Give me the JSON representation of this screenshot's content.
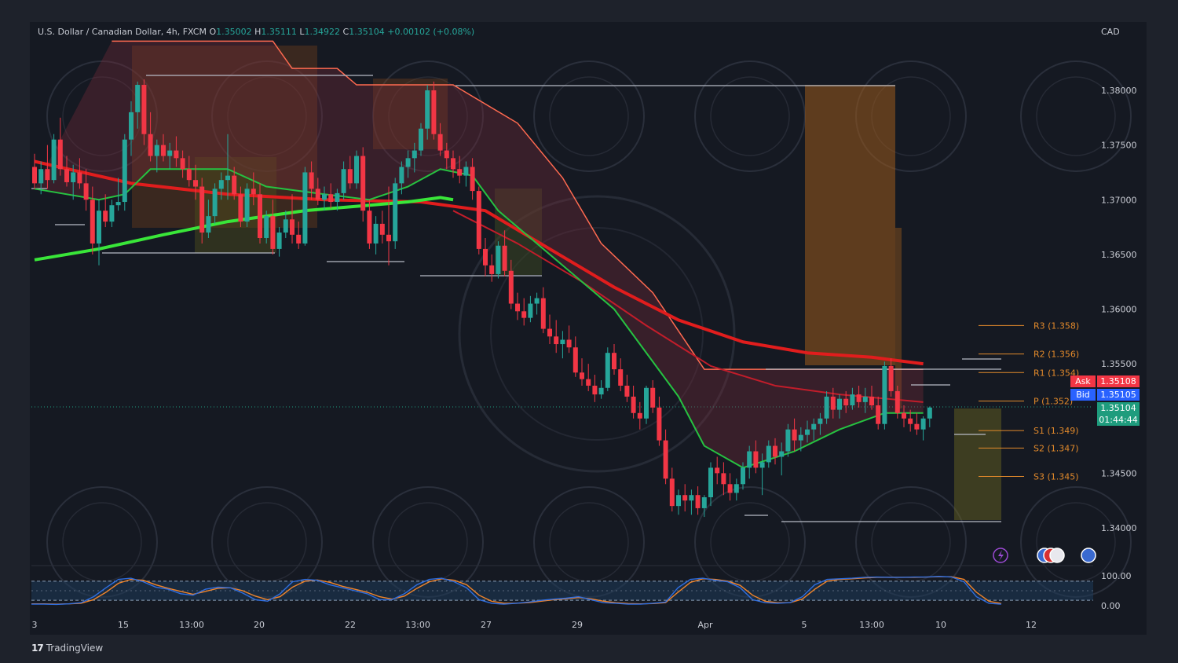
{
  "header": {
    "symbol": "U.S. Dollar / Canadian Dollar, 4h, FXCM",
    "o_label": "O",
    "o": "1.35002",
    "h_label": "H",
    "h": "1.35111",
    "l_label": "L",
    "l": "1.34922",
    "c_label": "C",
    "c": "1.35104",
    "change": "+0.00102 (+0.08%)"
  },
  "currency": "CAD",
  "brand": "TradingView",
  "quote": {
    "ask_label": "Ask",
    "ask": "1.35108",
    "bid_label": "Bid",
    "bid": "1.35105",
    "last": "1.35104",
    "countdown": "01:44:44"
  },
  "colors": {
    "up": "#26a69a",
    "down": "#f23645",
    "ema_green": "#39e639",
    "ema_red": "#e11d1d",
    "pivot": "#e38a2b",
    "box": "#b5621d"
  },
  "chart_data": {
    "type": "line",
    "title": "",
    "price_axis": {
      "ticks": [
        "1.38000",
        "1.37500",
        "1.37000",
        "1.36500",
        "1.36000",
        "1.35500",
        "1.35000",
        "1.34500",
        "1.34000"
      ],
      "ylim": [
        1.3365,
        1.3855
      ]
    },
    "time_axis": {
      "ticks": [
        "3",
        "15",
        "13:00",
        "20",
        "22",
        "13:00",
        "27",
        "29",
        "Apr",
        "5",
        "13:00",
        "10",
        "12"
      ]
    },
    "oscillator_axis": {
      "ticks": [
        "100.00",
        "0.00"
      ],
      "ylim": [
        0,
        100
      ]
    },
    "pivots": [
      {
        "label": "R3 (1.358)",
        "value": 1.3585
      },
      {
        "label": "R2 (1.356)",
        "value": 1.3559
      },
      {
        "label": "R1 (1.354)",
        "value": 1.3542
      },
      {
        "label": "P (1.352)",
        "value": 1.3516
      },
      {
        "label": "S1 (1.349)",
        "value": 1.3489
      },
      {
        "label": "S2 (1.347)",
        "value": 1.3473
      },
      {
        "label": "S3 (1.345)",
        "value": 1.3447
      }
    ],
    "ohlc": [
      [
        1.373,
        1.3742,
        1.371,
        1.3715
      ],
      [
        1.3715,
        1.3735,
        1.3705,
        1.3728
      ],
      [
        1.3728,
        1.375,
        1.371,
        1.3718
      ],
      [
        1.3718,
        1.376,
        1.3715,
        1.3755
      ],
      [
        1.3755,
        1.3775,
        1.3722,
        1.3728
      ],
      [
        1.3728,
        1.374,
        1.3712,
        1.3716
      ],
      [
        1.3716,
        1.3732,
        1.37,
        1.3725
      ],
      [
        1.3725,
        1.3738,
        1.371,
        1.3715
      ],
      [
        1.3715,
        1.3728,
        1.369,
        1.37
      ],
      [
        1.37,
        1.3712,
        1.365,
        1.366
      ],
      [
        1.366,
        1.37,
        1.364,
        1.369
      ],
      [
        1.369,
        1.3705,
        1.3675,
        1.368
      ],
      [
        1.368,
        1.37,
        1.3675,
        1.3695
      ],
      [
        1.3695,
        1.372,
        1.369,
        1.3698
      ],
      [
        1.3698,
        1.376,
        1.369,
        1.3755
      ],
      [
        1.3755,
        1.379,
        1.374,
        1.378
      ],
      [
        1.378,
        1.3808,
        1.3765,
        1.3805
      ],
      [
        1.3805,
        1.381,
        1.375,
        1.376
      ],
      [
        1.376,
        1.378,
        1.3735,
        1.374
      ],
      [
        1.374,
        1.3755,
        1.3725,
        1.375
      ],
      [
        1.375,
        1.376,
        1.3735,
        1.374
      ],
      [
        1.374,
        1.3752,
        1.3728,
        1.3745
      ],
      [
        1.3745,
        1.3758,
        1.373,
        1.3738
      ],
      [
        1.3738,
        1.3745,
        1.372,
        1.3728
      ],
      [
        1.3728,
        1.374,
        1.3712,
        1.3718
      ],
      [
        1.3718,
        1.3732,
        1.37,
        1.3712
      ],
      [
        1.3712,
        1.372,
        1.366,
        1.367
      ],
      [
        1.367,
        1.37,
        1.3665,
        1.3685
      ],
      [
        1.3685,
        1.3715,
        1.3678,
        1.371
      ],
      [
        1.371,
        1.3725,
        1.37,
        1.3718
      ],
      [
        1.3718,
        1.376,
        1.37,
        1.3722
      ],
      [
        1.3722,
        1.373,
        1.37,
        1.3705
      ],
      [
        1.3705,
        1.3712,
        1.3675,
        1.368
      ],
      [
        1.368,
        1.3715,
        1.3675,
        1.371
      ],
      [
        1.371,
        1.3725,
        1.3695,
        1.3705
      ],
      [
        1.3705,
        1.3715,
        1.366,
        1.3665
      ],
      [
        1.3665,
        1.369,
        1.366,
        1.3685
      ],
      [
        1.3685,
        1.37,
        1.365,
        1.3655
      ],
      [
        1.3655,
        1.3675,
        1.3648,
        1.367
      ],
      [
        1.367,
        1.369,
        1.3665,
        1.3682
      ],
      [
        1.3682,
        1.3705,
        1.366,
        1.3668
      ],
      [
        1.3668,
        1.368,
        1.3655,
        1.366
      ],
      [
        1.366,
        1.373,
        1.3658,
        1.3725
      ],
      [
        1.3725,
        1.3735,
        1.37,
        1.371
      ],
      [
        1.371,
        1.372,
        1.3695,
        1.37
      ],
      [
        1.37,
        1.3712,
        1.369,
        1.3705
      ],
      [
        1.3705,
        1.3715,
        1.3692,
        1.3698
      ],
      [
        1.3698,
        1.371,
        1.369,
        1.3706
      ],
      [
        1.3706,
        1.3735,
        1.37,
        1.3728
      ],
      [
        1.3728,
        1.374,
        1.371,
        1.3715
      ],
      [
        1.3715,
        1.3745,
        1.371,
        1.374
      ],
      [
        1.374,
        1.3748,
        1.368,
        1.369
      ],
      [
        1.369,
        1.37,
        1.3655,
        1.366
      ],
      [
        1.366,
        1.3685,
        1.365,
        1.3678
      ],
      [
        1.3678,
        1.369,
        1.366,
        1.3668
      ],
      [
        1.3668,
        1.3712,
        1.364,
        1.3662
      ],
      [
        1.3662,
        1.372,
        1.3655,
        1.3715
      ],
      [
        1.3715,
        1.3735,
        1.3705,
        1.373
      ],
      [
        1.373,
        1.3745,
        1.372,
        1.3738
      ],
      [
        1.3738,
        1.3752,
        1.3725,
        1.3745
      ],
      [
        1.3745,
        1.377,
        1.374,
        1.3765
      ],
      [
        1.3765,
        1.3805,
        1.3755,
        1.38
      ],
      [
        1.38,
        1.3808,
        1.3755,
        1.376
      ],
      [
        1.376,
        1.377,
        1.374,
        1.3745
      ],
      [
        1.3745,
        1.3752,
        1.3728,
        1.3738
      ],
      [
        1.3738,
        1.3745,
        1.372,
        1.3728
      ],
      [
        1.3728,
        1.374,
        1.3715,
        1.3722
      ],
      [
        1.3722,
        1.3735,
        1.3712,
        1.373
      ],
      [
        1.373,
        1.3738,
        1.37,
        1.3708
      ],
      [
        1.3708,
        1.3712,
        1.365,
        1.3655
      ],
      [
        1.3655,
        1.3665,
        1.363,
        1.364
      ],
      [
        1.364,
        1.365,
        1.3625,
        1.3632
      ],
      [
        1.3632,
        1.3662,
        1.3628,
        1.3658
      ],
      [
        1.3658,
        1.3672,
        1.363,
        1.3635
      ],
      [
        1.3635,
        1.3645,
        1.36,
        1.3605
      ],
      [
        1.3605,
        1.3615,
        1.359,
        1.3598
      ],
      [
        1.3598,
        1.361,
        1.3585,
        1.3592
      ],
      [
        1.3592,
        1.3612,
        1.3588,
        1.3605
      ],
      [
        1.3605,
        1.3615,
        1.3595,
        1.361
      ],
      [
        1.361,
        1.362,
        1.3578,
        1.3582
      ],
      [
        1.3582,
        1.3595,
        1.3568,
        1.3575
      ],
      [
        1.3575,
        1.359,
        1.356,
        1.3568
      ],
      [
        1.3568,
        1.358,
        1.3555,
        1.3572
      ],
      [
        1.3572,
        1.3585,
        1.356,
        1.3565
      ],
      [
        1.3565,
        1.3575,
        1.3538,
        1.3542
      ],
      [
        1.3542,
        1.3555,
        1.353,
        1.3536
      ],
      [
        1.3536,
        1.355,
        1.3525,
        1.353
      ],
      [
        1.353,
        1.354,
        1.3515,
        1.3522
      ],
      [
        1.3522,
        1.3535,
        1.3518,
        1.3528
      ],
      [
        1.3528,
        1.3565,
        1.3525,
        1.356
      ],
      [
        1.356,
        1.3568,
        1.354,
        1.3545
      ],
      [
        1.3545,
        1.3555,
        1.3525,
        1.353
      ],
      [
        1.353,
        1.354,
        1.3515,
        1.352
      ],
      [
        1.352,
        1.353,
        1.35,
        1.3505
      ],
      [
        1.3505,
        1.3515,
        1.349,
        1.35
      ],
      [
        1.35,
        1.353,
        1.3495,
        1.3528
      ],
      [
        1.3528,
        1.3535,
        1.3505,
        1.351
      ],
      [
        1.351,
        1.352,
        1.3475,
        1.348
      ],
      [
        1.348,
        1.349,
        1.344,
        1.3445
      ],
      [
        1.3445,
        1.3455,
        1.3415,
        1.342
      ],
      [
        1.342,
        1.3435,
        1.3412,
        1.343
      ],
      [
        1.343,
        1.344,
        1.3415,
        1.3425
      ],
      [
        1.3425,
        1.3435,
        1.3412,
        1.343
      ],
      [
        1.343,
        1.3438,
        1.3412,
        1.3418
      ],
      [
        1.3418,
        1.343,
        1.341,
        1.3428
      ],
      [
        1.3428,
        1.346,
        1.342,
        1.3455
      ],
      [
        1.3455,
        1.3465,
        1.344,
        1.345
      ],
      [
        1.345,
        1.346,
        1.343,
        1.344
      ],
      [
        1.344,
        1.345,
        1.3425,
        1.3432
      ],
      [
        1.3432,
        1.3445,
        1.3425,
        1.344
      ],
      [
        1.344,
        1.346,
        1.3435,
        1.3455
      ],
      [
        1.3455,
        1.3475,
        1.3445,
        1.347
      ],
      [
        1.347,
        1.348,
        1.345,
        1.3455
      ],
      [
        1.3455,
        1.3468,
        1.343,
        1.346
      ],
      [
        1.346,
        1.348,
        1.3455,
        1.3475
      ],
      [
        1.3475,
        1.3482,
        1.3458,
        1.3465
      ],
      [
        1.3465,
        1.3478,
        1.3448,
        1.347
      ],
      [
        1.347,
        1.3495,
        1.3465,
        1.349
      ],
      [
        1.349,
        1.35,
        1.347,
        1.348
      ],
      [
        1.348,
        1.3492,
        1.347,
        1.3485
      ],
      [
        1.3485,
        1.3498,
        1.3478,
        1.349
      ],
      [
        1.349,
        1.35,
        1.348,
        1.3495
      ],
      [
        1.3495,
        1.3505,
        1.3485,
        1.35
      ],
      [
        1.35,
        1.3525,
        1.3495,
        1.352
      ],
      [
        1.352,
        1.3528,
        1.35,
        1.3508
      ],
      [
        1.3508,
        1.3522,
        1.35,
        1.3518
      ],
      [
        1.3518,
        1.3525,
        1.3505,
        1.3512
      ],
      [
        1.3512,
        1.3528,
        1.3508,
        1.3522
      ],
      [
        1.3522,
        1.353,
        1.351,
        1.3515
      ],
      [
        1.3515,
        1.3528,
        1.3505,
        1.352
      ],
      [
        1.352,
        1.353,
        1.3508,
        1.3512
      ],
      [
        1.3512,
        1.352,
        1.349,
        1.3495
      ],
      [
        1.3495,
        1.3552,
        1.349,
        1.3548
      ],
      [
        1.3548,
        1.3555,
        1.352,
        1.3525
      ],
      [
        1.3525,
        1.353,
        1.35,
        1.3505
      ],
      [
        1.3505,
        1.3512,
        1.3492,
        1.35
      ],
      [
        1.35,
        1.3508,
        1.3488,
        1.3495
      ],
      [
        1.3495,
        1.3505,
        1.3485,
        1.349
      ],
      [
        1.349,
        1.3502,
        1.348,
        1.35
      ],
      [
        1.35,
        1.3511,
        1.3492,
        1.351
      ]
    ],
    "ema_fast": [
      [
        0,
        1.371
      ],
      [
        10,
        1.37
      ],
      [
        14,
        1.3705
      ],
      [
        18,
        1.3728
      ],
      [
        30,
        1.3728
      ],
      [
        36,
        1.3712
      ],
      [
        45,
        1.3705
      ],
      [
        52,
        1.37
      ],
      [
        58,
        1.3712
      ],
      [
        63,
        1.3728
      ],
      [
        68,
        1.3722
      ],
      [
        72,
        1.369
      ],
      [
        80,
        1.365
      ],
      [
        90,
        1.36
      ],
      [
        100,
        1.352
      ],
      [
        104,
        1.3475
      ],
      [
        110,
        1.3455
      ],
      [
        118,
        1.347
      ],
      [
        125,
        1.349
      ],
      [
        132,
        1.3505
      ],
      [
        138,
        1.3505
      ]
    ],
    "ema_slow": [
      [
        0,
        1.3645
      ],
      [
        10,
        1.3655
      ],
      [
        20,
        1.3668
      ],
      [
        30,
        1.368
      ],
      [
        42,
        1.369
      ],
      [
        52,
        1.3695
      ],
      [
        58,
        1.3698
      ],
      [
        63,
        1.3702
      ],
      [
        65,
        1.37
      ]
    ],
    "ema_red_thick": [
      [
        0,
        1.3735
      ],
      [
        15,
        1.3715
      ],
      [
        30,
        1.3705
      ],
      [
        45,
        1.37
      ],
      [
        60,
        1.3698
      ],
      [
        70,
        1.369
      ],
      [
        80,
        1.3655
      ],
      [
        90,
        1.362
      ],
      [
        100,
        1.359
      ],
      [
        110,
        1.357
      ],
      [
        120,
        1.356
      ],
      [
        130,
        1.3556
      ],
      [
        138,
        1.355
      ]
    ],
    "ema_red_mid": [
      [
        65,
        1.369
      ],
      [
        75,
        1.366
      ],
      [
        85,
        1.3625
      ],
      [
        95,
        1.3585
      ],
      [
        105,
        1.3548
      ],
      [
        115,
        1.353
      ],
      [
        125,
        1.3522
      ],
      [
        138,
        1.3515
      ]
    ],
    "trail_stop": [
      [
        12,
        1.3845
      ],
      [
        37,
        1.3845
      ],
      [
        40,
        1.382
      ],
      [
        47,
        1.382
      ],
      [
        50,
        1.3805
      ],
      [
        65,
        1.3805
      ],
      [
        75,
        1.377
      ],
      [
        82,
        1.372
      ],
      [
        88,
        1.366
      ],
      [
        96,
        1.3615
      ],
      [
        104,
        1.3545
      ],
      [
        138,
        1.3545
      ]
    ],
    "stoch_k": [
      5,
      5,
      4,
      6,
      10,
      30,
      60,
      88,
      92,
      80,
      62,
      55,
      40,
      35,
      55,
      62,
      60,
      42,
      20,
      15,
      40,
      80,
      88,
      85,
      70,
      60,
      50,
      40,
      20,
      20,
      40,
      70,
      88,
      92,
      80,
      60,
      20,
      8,
      5,
      8,
      12,
      18,
      22,
      25,
      30,
      20,
      10,
      8,
      5,
      5,
      8,
      12,
      60,
      88,
      92,
      85,
      80,
      60,
      20,
      10,
      8,
      10,
      30,
      70,
      88,
      90,
      92,
      95,
      96,
      95,
      95,
      96,
      96,
      98,
      96,
      80,
      30,
      8,
      5
    ],
    "stoch_d": [
      6,
      6,
      5,
      6,
      8,
      20,
      45,
      75,
      88,
      85,
      70,
      58,
      48,
      38,
      48,
      58,
      60,
      50,
      32,
      20,
      30,
      62,
      82,
      86,
      78,
      65,
      55,
      45,
      30,
      22,
      32,
      58,
      80,
      90,
      85,
      70,
      35,
      15,
      8,
      8,
      10,
      15,
      20,
      23,
      27,
      23,
      15,
      10,
      7,
      6,
      7,
      10,
      45,
      78,
      90,
      88,
      82,
      68,
      35,
      15,
      10,
      10,
      22,
      55,
      82,
      88,
      90,
      93,
      95,
      95,
      95,
      95,
      96,
      97,
      97,
      88,
      45,
      15,
      7
    ]
  }
}
